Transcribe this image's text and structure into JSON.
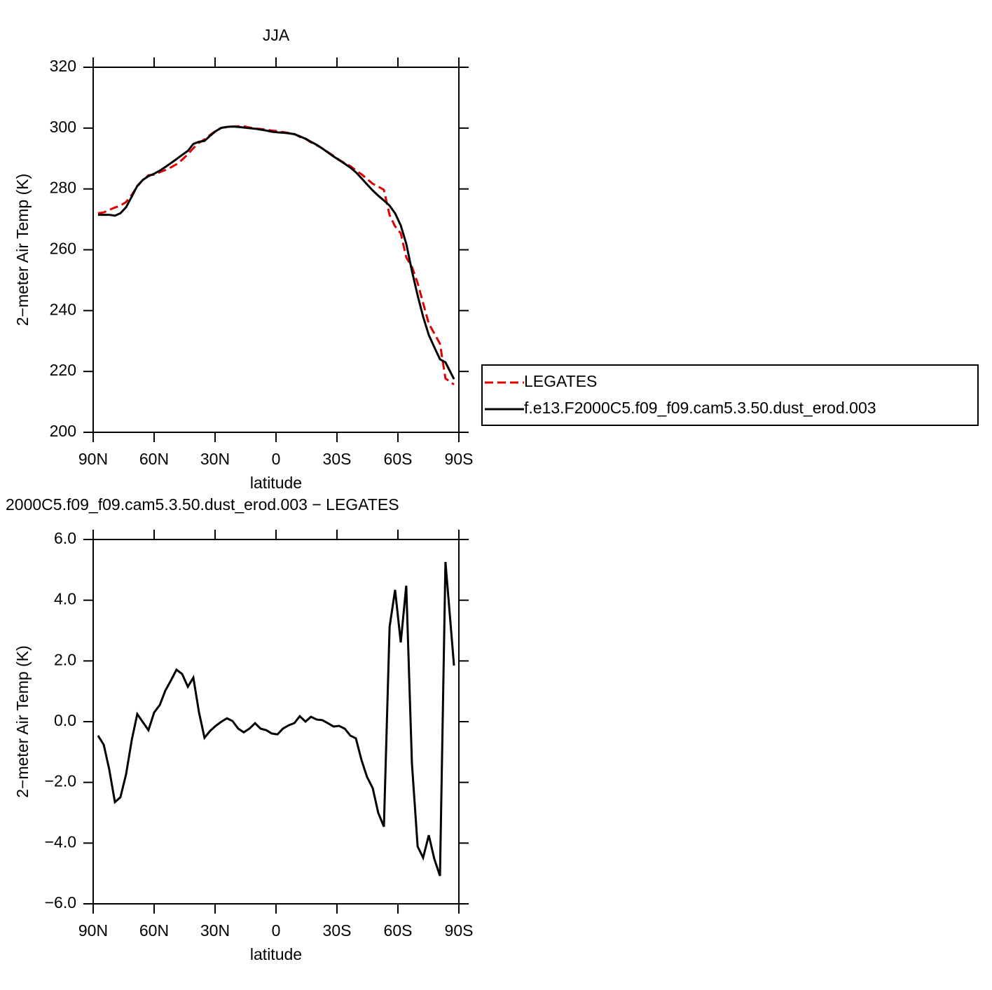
{
  "chart_data": [
    {
      "type": "line",
      "title": "JJA",
      "xlabel": "latitude",
      "ylabel": "2−meter Air Temp (K)",
      "x": [
        87.6,
        84.8,
        82.1,
        79.3,
        76.6,
        73.8,
        71.0,
        68.3,
        65.5,
        62.8,
        60.0,
        57.2,
        54.5,
        51.7,
        49.0,
        46.2,
        43.4,
        40.7,
        37.9,
        35.2,
        32.4,
        29.7,
        26.9,
        24.1,
        21.4,
        18.6,
        15.9,
        13.1,
        10.3,
        7.6,
        4.8,
        2.1,
        -0.7,
        -3.4,
        -6.2,
        -9.0,
        -11.7,
        -14.5,
        -17.2,
        -20.0,
        -22.8,
        -25.5,
        -28.3,
        -31.0,
        -33.8,
        -36.6,
        -39.3,
        -42.1,
        -44.8,
        -47.6,
        -50.3,
        -53.1,
        -55.9,
        -58.6,
        -61.4,
        -64.1,
        -66.9,
        -69.7,
        -72.4,
        -75.2,
        -77.9,
        -80.7,
        -83.4,
        -87.6
      ],
      "series": [
        {
          "name": "LEGATES",
          "color": "#e00000",
          "dash": true,
          "values": [
            272.0,
            272.3,
            273.1,
            273.9,
            274.5,
            275.7,
            278.1,
            280.8,
            283.0,
            284.5,
            284.7,
            285.5,
            286.2,
            287.1,
            288.1,
            289.6,
            291.4,
            293.4,
            295.2,
            296.3,
            297.8,
            299.1,
            300.1,
            300.3,
            300.5,
            300.6,
            300.6,
            300.2,
            299.9,
            299.7,
            299.5,
            299.2,
            299.0,
            298.7,
            298.4,
            298.1,
            297.1,
            296.5,
            295.3,
            294.4,
            293.3,
            292.1,
            290.9,
            289.6,
            288.5,
            287.5,
            286.1,
            284.8,
            283.3,
            281.7,
            280.8,
            279.7,
            271.4,
            267.7,
            265.4,
            257.5,
            254.4,
            249.1,
            242.5,
            235.7,
            232.5,
            229.1,
            217.7,
            215.7
          ]
        },
        {
          "name": "f.e13.F2000C5.f09_f09.cam5.3.50.dust_erod.003",
          "color": "#000000",
          "dash": false,
          "values": [
            271.5,
            271.5,
            271.5,
            271.2,
            272.0,
            274.0,
            277.5,
            281.0,
            283.0,
            284.2,
            285.0,
            286.0,
            287.2,
            288.5,
            289.8,
            291.2,
            292.5,
            294.8,
            295.5,
            295.8,
            297.5,
            299.0,
            300.1,
            300.4,
            300.5,
            300.4,
            300.2,
            300.0,
            299.8,
            299.5,
            299.2,
            298.8,
            298.6,
            298.5,
            298.3,
            298.0,
            297.3,
            296.5,
            295.5,
            294.5,
            293.3,
            292.0,
            290.7,
            289.5,
            288.3,
            287.0,
            285.5,
            283.5,
            281.5,
            279.5,
            277.8,
            276.2,
            274.5,
            272.0,
            268.0,
            262.0,
            253.0,
            245.0,
            238.0,
            232.0,
            228.0,
            224.0,
            223.0,
            217.5
          ]
        }
      ],
      "xlim": [
        90,
        -90
      ],
      "xticks": [
        {
          "value": 90,
          "label": "90N"
        },
        {
          "value": 60,
          "label": "60N"
        },
        {
          "value": 30,
          "label": "30N"
        },
        0,
        {
          "value": -30,
          "label": "30S"
        },
        {
          "value": -60,
          "label": "60S"
        },
        {
          "value": -90,
          "label": "90S"
        }
      ],
      "ylim": [
        200,
        320
      ],
      "yticks": [
        200,
        220,
        240,
        260,
        280,
        300,
        320
      ]
    },
    {
      "type": "line",
      "title": "2000C5.f09_f09.cam5.3.50.dust_erod.003 − LEGATES",
      "xlabel": "latitude",
      "ylabel": "2−meter Air Temp (K)",
      "x": [
        87.6,
        84.8,
        82.1,
        79.3,
        76.6,
        73.8,
        71.0,
        68.3,
        65.5,
        62.8,
        60.0,
        57.2,
        54.5,
        51.7,
        49.0,
        46.2,
        43.4,
        40.7,
        37.9,
        35.2,
        32.4,
        29.7,
        26.9,
        24.1,
        21.4,
        18.6,
        15.9,
        13.1,
        10.3,
        7.6,
        4.8,
        2.1,
        -0.7,
        -3.4,
        -6.2,
        -9.0,
        -11.7,
        -14.5,
        -17.2,
        -20.0,
        -22.8,
        -25.5,
        -28.3,
        -31.0,
        -33.8,
        -36.6,
        -39.3,
        -42.1,
        -44.8,
        -47.6,
        -50.3,
        -53.1,
        -55.9,
        -58.6,
        -61.4,
        -64.1,
        -66.9,
        -69.7,
        -72.4,
        -75.2,
        -77.9,
        -80.7,
        -83.4,
        -87.6
      ],
      "series": [
        {
          "color": "#000000",
          "dash": false,
          "values": [
            -0.46,
            -0.76,
            -1.57,
            -2.65,
            -2.49,
            -1.73,
            -0.6,
            0.25,
            -0.02,
            -0.28,
            0.3,
            0.55,
            1.02,
            1.36,
            1.71,
            1.57,
            1.15,
            1.45,
            0.3,
            -0.53,
            -0.3,
            -0.14,
            0.0,
            0.11,
            0.02,
            -0.23,
            -0.35,
            -0.23,
            -0.05,
            -0.23,
            -0.28,
            -0.39,
            -0.42,
            -0.23,
            -0.12,
            -0.05,
            0.18,
            0.0,
            0.16,
            0.07,
            0.05,
            -0.05,
            -0.16,
            -0.14,
            -0.23,
            -0.46,
            -0.55,
            -1.27,
            -1.82,
            -2.19,
            -3.0,
            -3.46,
            3.12,
            4.34,
            2.61,
            4.48,
            -1.38,
            -4.11,
            -4.48,
            -3.74,
            -4.52,
            -5.08,
            5.26,
            1.85
          ]
        }
      ],
      "xlim": [
        90,
        -90
      ],
      "xticks": [
        {
          "value": 90,
          "label": "90N"
        },
        {
          "value": 60,
          "label": "60N"
        },
        {
          "value": 30,
          "label": "30N"
        },
        0,
        {
          "value": -30,
          "label": "30S"
        },
        {
          "value": -60,
          "label": "60S"
        },
        {
          "value": -90,
          "label": "90S"
        }
      ],
      "ylim": [
        -6,
        6
      ],
      "yticks": [
        {
          "value": -6,
          "label": "−6.0"
        },
        {
          "value": -4,
          "label": "−4.0"
        },
        {
          "value": -2,
          "label": "−2.0"
        },
        {
          "value": 0,
          "label": "0.0"
        },
        {
          "value": 2,
          "label": "2.0"
        },
        {
          "value": 4,
          "label": "4.0"
        },
        {
          "value": 6,
          "label": "6.0"
        }
      ]
    }
  ]
}
